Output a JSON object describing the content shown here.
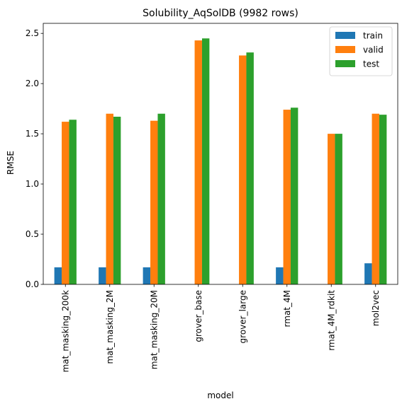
{
  "chart_data": {
    "type": "bar",
    "title": "Solubility_AqSolDB (9982 rows)",
    "xlabel": "model",
    "ylabel": "RMSE",
    "ylim": [
      0,
      2.6
    ],
    "yticks": [
      "0.0",
      "0.5",
      "1.0",
      "1.5",
      "2.0",
      "2.5"
    ],
    "grid": false,
    "legend_position": "top-right",
    "categories": [
      "mat_masking_200k",
      "mat_masking_2M",
      "mat_masking_20M",
      "grover_base",
      "grover_large",
      "rmat_4M",
      "rmat_4M_rdkit",
      "mol2vec"
    ],
    "series": [
      {
        "name": "train",
        "color": "#1f77b4",
        "values": [
          0.17,
          0.17,
          0.17,
          0,
          0,
          0.17,
          0,
          0.21
        ]
      },
      {
        "name": "valid",
        "color": "#ff7f0e",
        "values": [
          1.62,
          1.7,
          1.63,
          2.43,
          2.28,
          1.74,
          1.5,
          1.7
        ]
      },
      {
        "name": "test",
        "color": "#2ca02c",
        "values": [
          1.64,
          1.67,
          1.7,
          2.45,
          2.31,
          1.76,
          1.5,
          1.69
        ]
      }
    ]
  }
}
